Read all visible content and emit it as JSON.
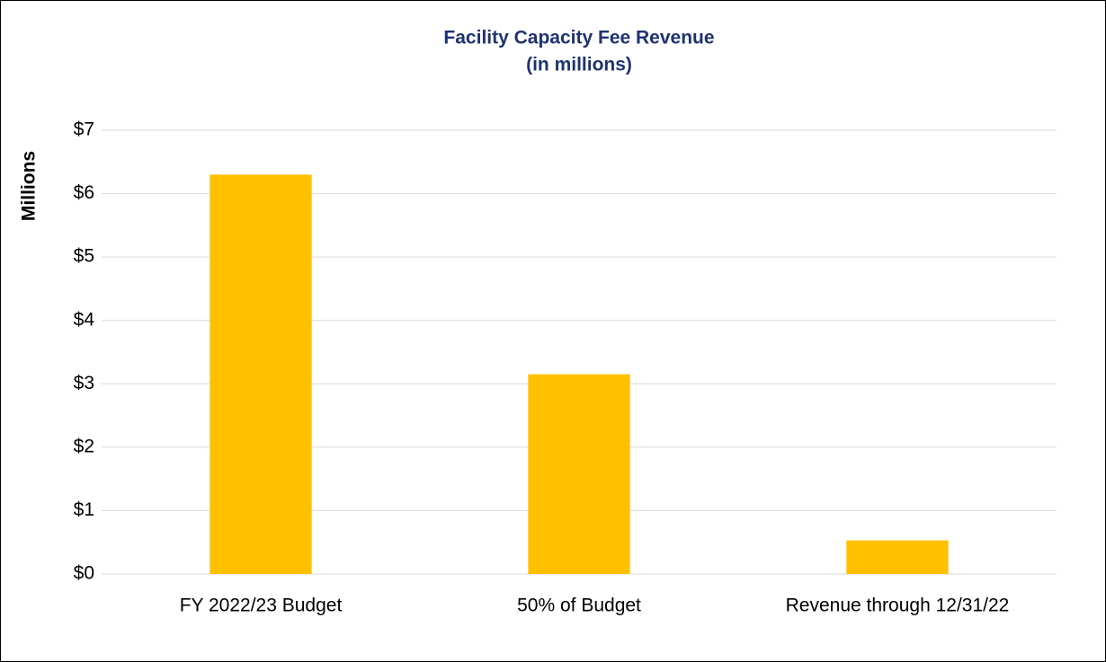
{
  "chart_data": {
    "type": "bar",
    "title": "Facility Capacity Fee Revenue",
    "subtitle": "(in millions)",
    "y_label": "Millions",
    "categories": [
      "FY 2022/23 Budget",
      "50% of Budget",
      "Revenue through 12/31/22"
    ],
    "values": [
      6.3,
      3.15,
      0.53
    ],
    "color": "#ffc000",
    "ylim": [
      0,
      7
    ],
    "yticks": [
      {
        "value": 0,
        "label": "$0"
      },
      {
        "value": 1,
        "label": "$1"
      },
      {
        "value": 2,
        "label": "$2"
      },
      {
        "value": 3,
        "label": "$3"
      },
      {
        "value": 4,
        "label": "$4"
      },
      {
        "value": 5,
        "label": "$5"
      },
      {
        "value": 6,
        "label": "$6"
      },
      {
        "value": 7,
        "label": "$7"
      }
    ],
    "grid": true
  }
}
